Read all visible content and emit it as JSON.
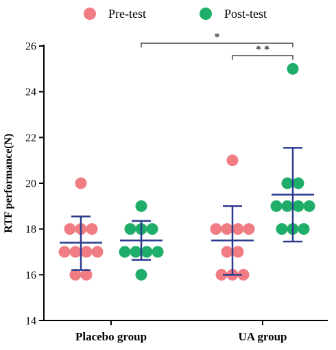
{
  "chart_data": {
    "type": "scatter",
    "ylabel": "RTF performance(N)",
    "xlabel": "",
    "ylim": [
      14,
      26
    ],
    "yticks": [
      14,
      16,
      18,
      20,
      22,
      24,
      26
    ],
    "categories": [
      "Placebo group",
      "UA group"
    ],
    "legend_position": "top",
    "series": [
      {
        "name": "Pre-test",
        "color": "#f07c84",
        "groups": [
          {
            "category": "Placebo group",
            "points": [
              20,
              18,
              18,
              18,
              17,
              17,
              17,
              17,
              16,
              16
            ],
            "mean": 17.4,
            "sd_low": 16.2,
            "sd_high": 18.55
          },
          {
            "category": "UA group",
            "points": [
              21,
              18,
              18,
              18,
              18,
              17,
              17,
              16,
              16,
              16
            ],
            "mean": 17.5,
            "sd_low": 16.0,
            "sd_high": 19.0
          }
        ]
      },
      {
        "name": "Post-test",
        "color": "#1fae6a",
        "groups": [
          {
            "category": "Placebo group",
            "points": [
              19,
              18,
              18,
              18,
              17,
              17,
              17,
              17,
              16
            ],
            "mean": 17.5,
            "sd_low": 16.65,
            "sd_high": 18.35
          },
          {
            "category": "UA group",
            "points": [
              25,
              20,
              20,
              19,
              19,
              19,
              19,
              18,
              18,
              18
            ],
            "mean": 19.5,
            "sd_low": 17.45,
            "sd_high": 21.55
          }
        ]
      }
    ],
    "error_bar_color": "#2b3a8f",
    "annotations": [
      {
        "label": "*",
        "from": "Placebo group Post-test",
        "to": "UA group Post-test"
      },
      {
        "label": "* *",
        "from": "UA group Pre-test",
        "to": "UA group Post-test"
      }
    ]
  }
}
